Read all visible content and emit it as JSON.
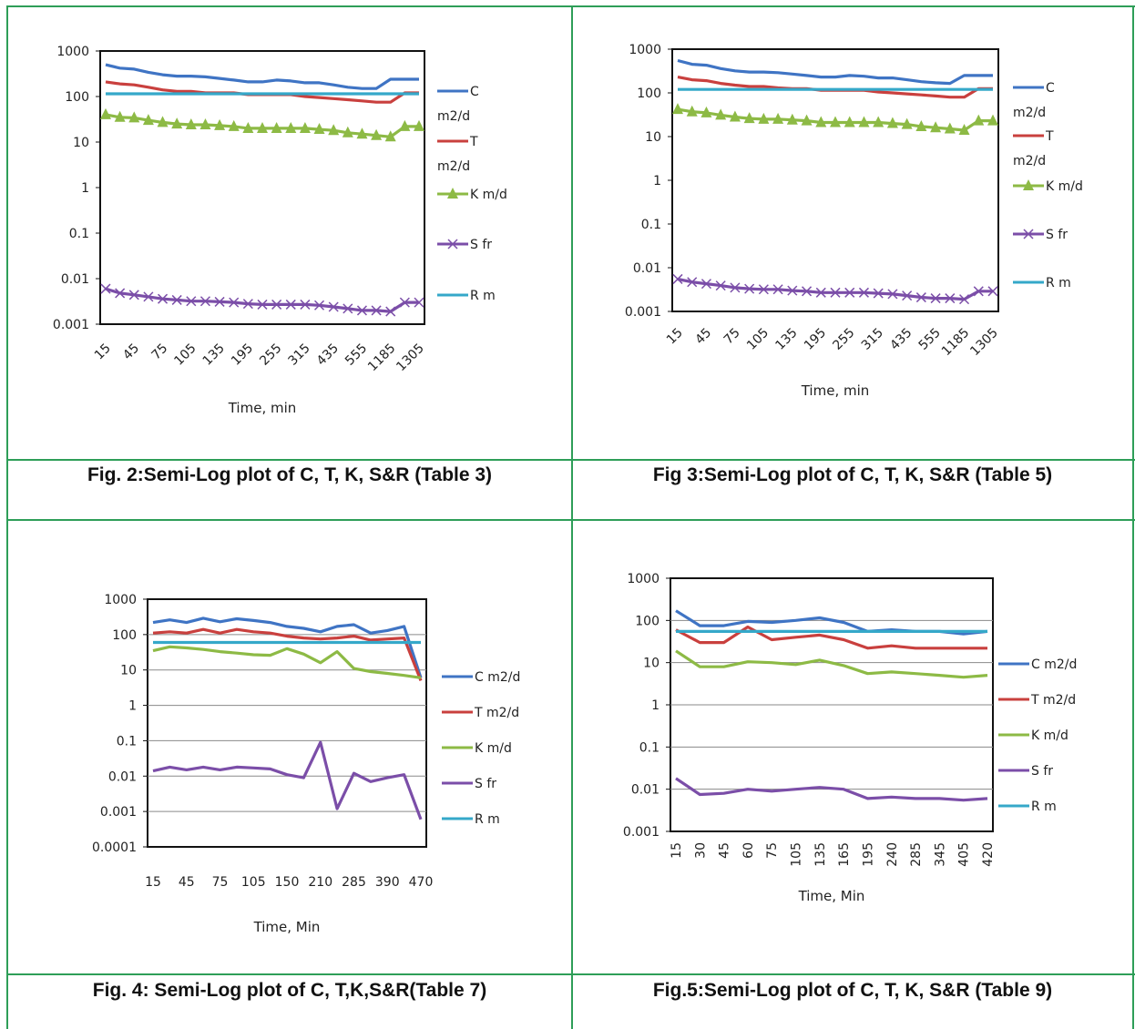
{
  "colors": {
    "table_border": "#2e9e58",
    "C": "#3f74c4",
    "T": "#c9403e",
    "K": "#8dba45",
    "S": "#7b4ea8",
    "R": "#35a8c9"
  },
  "captions": {
    "fig2": "Fig. 2:Semi-Log plot of C, T, K, S&R (Table 3)",
    "fig3": "Fig 3:Semi-Log plot of C, T, K, S&R (Table 5)",
    "fig4": "Fig. 4: Semi-Log plot of C, T,K,S&R(Table 7)",
    "fig5": "Fig.5:Semi-Log plot of C, T, K, S&R (Table 9)"
  },
  "chart_data": [
    {
      "type": "line",
      "log_y": true,
      "ylim": [
        0.001,
        1000
      ],
      "ytick_labels": [
        "1000",
        "100",
        "10",
        "1",
        "0.1",
        "0.01",
        "0.001"
      ],
      "xlabel": "Time, min",
      "categories": [
        "15",
        "30",
        "45",
        "60",
        "75",
        "90",
        "105",
        "120",
        "135",
        "150",
        "195",
        "210",
        "255",
        "270",
        "315",
        "330",
        "435",
        "495",
        "555",
        "615",
        "1185",
        "1245",
        "1305"
      ],
      "x_tick_labels": [
        "15",
        "45",
        "75",
        "105",
        "135",
        "195",
        "255",
        "315",
        "435",
        "555",
        "1185",
        "1305"
      ],
      "grid": false,
      "legend_position": "right",
      "series": [
        {
          "name": "C m2/d",
          "values": [
            500,
            420,
            400,
            340,
            300,
            280,
            280,
            270,
            250,
            230,
            210,
            210,
            230,
            220,
            200,
            200,
            180,
            160,
            150,
            150,
            240,
            240,
            240
          ]
        },
        {
          "name": "T m2/d",
          "values": [
            210,
            190,
            180,
            160,
            140,
            130,
            130,
            120,
            120,
            120,
            110,
            110,
            110,
            110,
            100,
            95,
            90,
            85,
            80,
            75,
            75,
            120,
            120
          ]
        },
        {
          "name": "K m/d",
          "values": [
            40,
            35,
            34,
            30,
            27,
            25,
            24,
            24,
            23,
            22,
            20,
            20,
            20,
            20,
            20,
            19,
            18,
            16,
            15,
            14,
            13,
            22,
            22
          ]
        },
        {
          "name": "S fr",
          "values": [
            0.006,
            0.0048,
            0.0044,
            0.004,
            0.0036,
            0.0034,
            0.0032,
            0.0032,
            0.0031,
            0.003,
            0.0028,
            0.0027,
            0.0027,
            0.0027,
            0.0027,
            0.0026,
            0.0024,
            0.0022,
            0.002,
            0.002,
            0.0019,
            0.003,
            0.003
          ]
        },
        {
          "name": "R m",
          "values": [
            115,
            115,
            115,
            115,
            115,
            115,
            115,
            115,
            115,
            115,
            115,
            115,
            115,
            115,
            115,
            115,
            115,
            115,
            115,
            115,
            115,
            115,
            115
          ]
        }
      ]
    },
    {
      "type": "line",
      "log_y": true,
      "ylim": [
        0.001,
        1000
      ],
      "ytick_labels": [
        "1000",
        "100",
        "10",
        "1",
        "0.1",
        "0.01",
        "0.001"
      ],
      "xlabel": "Time, min",
      "categories": [
        "15",
        "30",
        "45",
        "60",
        "75",
        "90",
        "105",
        "120",
        "135",
        "150",
        "195",
        "210",
        "255",
        "270",
        "315",
        "330",
        "435",
        "495",
        "555",
        "615",
        "1185",
        "1245",
        "1305"
      ],
      "x_tick_labels": [
        "15",
        "45",
        "75",
        "105",
        "135",
        "195",
        "255",
        "315",
        "435",
        "555",
        "1185",
        "1305"
      ],
      "grid": false,
      "legend_position": "right",
      "series": [
        {
          "name": "C m2/d",
          "values": [
            550,
            450,
            430,
            360,
            320,
            300,
            300,
            290,
            270,
            250,
            230,
            230,
            250,
            240,
            220,
            220,
            200,
            180,
            170,
            165,
            250,
            250,
            250
          ]
        },
        {
          "name": "T m2/d",
          "values": [
            230,
            200,
            190,
            165,
            150,
            140,
            140,
            130,
            125,
            125,
            115,
            115,
            115,
            115,
            105,
            100,
            95,
            90,
            85,
            80,
            80,
            125,
            125
          ]
        },
        {
          "name": "K m/d",
          "values": [
            42,
            37,
            35,
            31,
            28,
            26,
            25,
            25,
            24,
            23,
            21,
            21,
            21,
            21,
            21,
            20,
            19,
            17,
            16,
            15,
            14,
            23,
            23
          ]
        },
        {
          "name": "S fr",
          "values": [
            0.0055,
            0.0047,
            0.0043,
            0.0039,
            0.0035,
            0.0033,
            0.0032,
            0.0032,
            0.003,
            0.0029,
            0.0027,
            0.0027,
            0.0027,
            0.0027,
            0.0026,
            0.0025,
            0.0023,
            0.0021,
            0.002,
            0.002,
            0.0019,
            0.0029,
            0.0029
          ]
        },
        {
          "name": "R m",
          "values": [
            120,
            120,
            120,
            120,
            120,
            120,
            120,
            120,
            120,
            120,
            120,
            120,
            120,
            120,
            120,
            120,
            120,
            120,
            120,
            120,
            120,
            120,
            120
          ]
        }
      ]
    },
    {
      "type": "line",
      "log_y": true,
      "ylim": [
        0.0001,
        1000
      ],
      "ytick_labels": [
        "1000",
        "100",
        "10",
        "1",
        "0.1",
        "0.01",
        "0.001",
        "0.0001"
      ],
      "xlabel": "Time, Min",
      "categories": [
        "15",
        "30",
        "45",
        "60",
        "75",
        "90",
        "105",
        "120",
        "150",
        "180",
        "210",
        "240",
        "285",
        "330",
        "390",
        "440",
        "470"
      ],
      "x_tick_labels": [
        "15",
        "45",
        "75",
        "105",
        "150",
        "210",
        "285",
        "390",
        "470"
      ],
      "grid": true,
      "legend_position": "right",
      "series": [
        {
          "name": "C m2/d",
          "values": [
            220,
            260,
            220,
            290,
            230,
            280,
            250,
            220,
            170,
            150,
            120,
            170,
            190,
            110,
            130,
            170,
            6
          ]
        },
        {
          "name": "T m2/d",
          "values": [
            110,
            120,
            110,
            140,
            110,
            140,
            120,
            110,
            90,
            80,
            75,
            80,
            90,
            70,
            75,
            80,
            5
          ]
        },
        {
          "name": "K m/d",
          "values": [
            35,
            45,
            42,
            38,
            33,
            30,
            27,
            26,
            40,
            28,
            16,
            33,
            11,
            9,
            8,
            7,
            6
          ]
        },
        {
          "name": "S fr",
          "values": [
            0.014,
            0.018,
            0.015,
            0.018,
            0.015,
            0.018,
            0.017,
            0.016,
            0.011,
            0.009,
            0.09,
            0.0012,
            0.012,
            0.007,
            0.009,
            0.011,
            0.0006
          ]
        },
        {
          "name": "R m",
          "values": [
            60,
            60,
            60,
            60,
            60,
            60,
            60,
            60,
            60,
            60,
            60,
            60,
            60,
            60,
            60,
            60,
            60
          ]
        }
      ]
    },
    {
      "type": "line",
      "log_y": true,
      "ylim": [
        0.001,
        1000
      ],
      "ytick_labels": [
        "1000",
        "100",
        "10",
        "1",
        "0.1",
        "0.01",
        "0.001"
      ],
      "xlabel": "Time, Min",
      "categories": [
        "15",
        "30",
        "45",
        "60",
        "75",
        "105",
        "135",
        "165",
        "195",
        "240",
        "285",
        "345",
        "405",
        "420"
      ],
      "x_tick_labels": [
        "15",
        "30",
        "45",
        "60",
        "75",
        "105",
        "135",
        "165",
        "195",
        "240",
        "285",
        "345",
        "405",
        "420"
      ],
      "grid": true,
      "legend_position": "right",
      "series": [
        {
          "name": "C m2/d",
          "values": [
            170,
            75,
            75,
            95,
            90,
            100,
            115,
            90,
            55,
            60,
            55,
            55,
            48,
            55
          ]
        },
        {
          "name": "T m2/d",
          "values": [
            60,
            30,
            30,
            70,
            35,
            40,
            45,
            35,
            22,
            25,
            22,
            22,
            22,
            22
          ]
        },
        {
          "name": "K m/d",
          "values": [
            19,
            8,
            8,
            10.5,
            10,
            9,
            11.5,
            8.5,
            5.5,
            6,
            5.5,
            5,
            4.5,
            5
          ]
        },
        {
          "name": "S fr",
          "values": [
            0.018,
            0.0075,
            0.008,
            0.01,
            0.009,
            0.01,
            0.011,
            0.01,
            0.006,
            0.0065,
            0.006,
            0.006,
            0.0055,
            0.006
          ]
        },
        {
          "name": "R m",
          "values": [
            55,
            55,
            55,
            55,
            55,
            55,
            55,
            55,
            55,
            55,
            55,
            55,
            55,
            55
          ]
        }
      ]
    }
  ]
}
